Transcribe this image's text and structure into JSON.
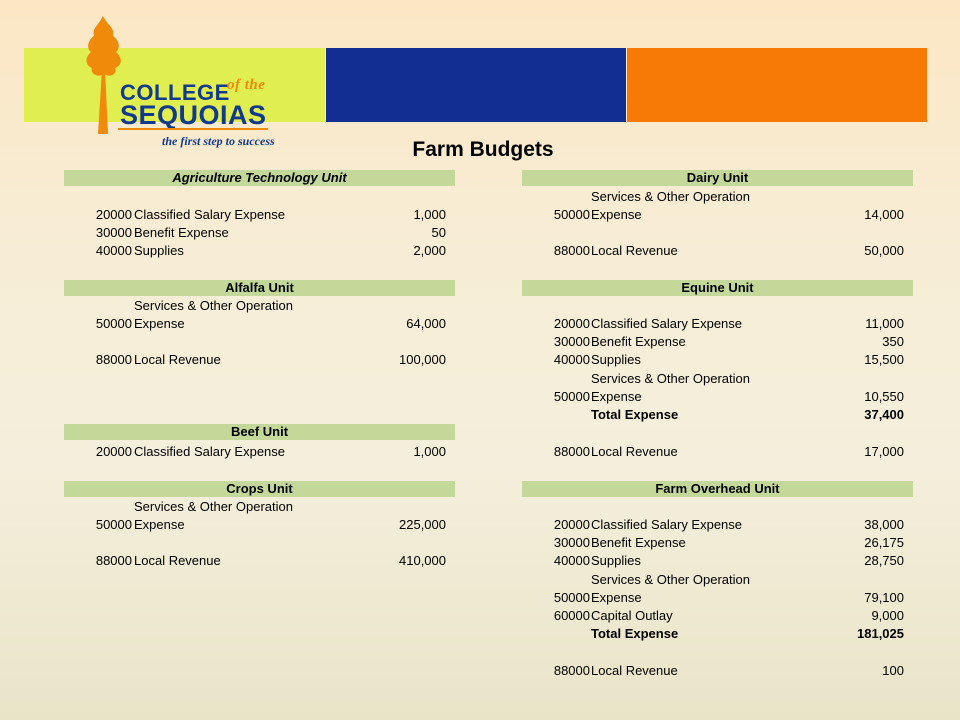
{
  "logo": {
    "line1": "COLLEGE",
    "line1_suffix": "of the",
    "line2": "SEQUOIAS",
    "tagline": "the first step to success"
  },
  "title": "Farm Budgets",
  "colors": {
    "banner_green": "#e0ee50",
    "banner_blue": "#112f93",
    "banner_orange": "#f77a06",
    "header_bg": "#c4d89a",
    "logo_orange": "#f08a0a",
    "logo_blue": "#123a8c"
  },
  "sections": {
    "ag_tech": {
      "title": "Agriculture Technology Unit",
      "rows": [
        {
          "code": "20000",
          "desc": "Classified Salary Expense",
          "amount": "1,000"
        },
        {
          "code": "30000",
          "desc": "Benefit Expense",
          "amount": "50"
        },
        {
          "code": "40000",
          "desc": "Supplies",
          "amount": "2,000"
        }
      ]
    },
    "dairy": {
      "title": "Dairy Unit",
      "rows": [
        {
          "code": "50000",
          "desc_line1": "Services & Other Operation",
          "desc": "Expense",
          "amount": "14,000"
        },
        {
          "code": "88000",
          "desc": "Local Revenue",
          "amount": "50,000"
        }
      ]
    },
    "alfalfa": {
      "title": "Alfalfa Unit",
      "rows": [
        {
          "code": "50000",
          "desc_line1": "Services & Other Operation",
          "desc": "Expense",
          "amount": "64,000"
        },
        {
          "code": "88000",
          "desc": "Local Revenue",
          "amount": "100,000"
        }
      ]
    },
    "equine": {
      "title": "Equine Unit",
      "rows": [
        {
          "code": "20000",
          "desc": "Classified Salary Expense",
          "amount": "11,000"
        },
        {
          "code": "30000",
          "desc": "Benefit Expense",
          "amount": "350"
        },
        {
          "code": "40000",
          "desc": "Supplies",
          "amount": "15,500"
        },
        {
          "code": "50000",
          "desc_line1": "Services & Other Operation",
          "desc": "Expense",
          "amount": "10,550"
        },
        {
          "desc": "Total Expense",
          "amount": "37,400"
        },
        {
          "code": "88000",
          "desc": "Local Revenue",
          "amount": "17,000"
        }
      ]
    },
    "beef": {
      "title": "Beef Unit",
      "rows": [
        {
          "code": "20000",
          "desc": "Classified Salary Expense",
          "amount": "1,000"
        }
      ]
    },
    "crops": {
      "title": "Crops Unit",
      "rows": [
        {
          "code": "50000",
          "desc_line1": "Services & Other Operation",
          "desc": "Expense",
          "amount": "225,000"
        },
        {
          "code": "88000",
          "desc": "Local Revenue",
          "amount": "410,000"
        }
      ]
    },
    "overhead": {
      "title": "Farm Overhead Unit",
      "rows": [
        {
          "code": "20000",
          "desc": "Classified Salary Expense",
          "amount": "38,000"
        },
        {
          "code": "30000",
          "desc": "Benefit Expense",
          "amount": "26,175"
        },
        {
          "code": "40000",
          "desc": "Supplies",
          "amount": "28,750"
        },
        {
          "code": "50000",
          "desc_line1": "Services & Other Operation",
          "desc": "Expense",
          "amount": "79,100"
        },
        {
          "code": "60000",
          "desc": "Capital Outlay",
          "amount": "9,000"
        },
        {
          "desc": "Total Expense",
          "amount": "181,025"
        },
        {
          "code": "88000",
          "desc": "Local Revenue",
          "amount": "100"
        }
      ]
    }
  }
}
